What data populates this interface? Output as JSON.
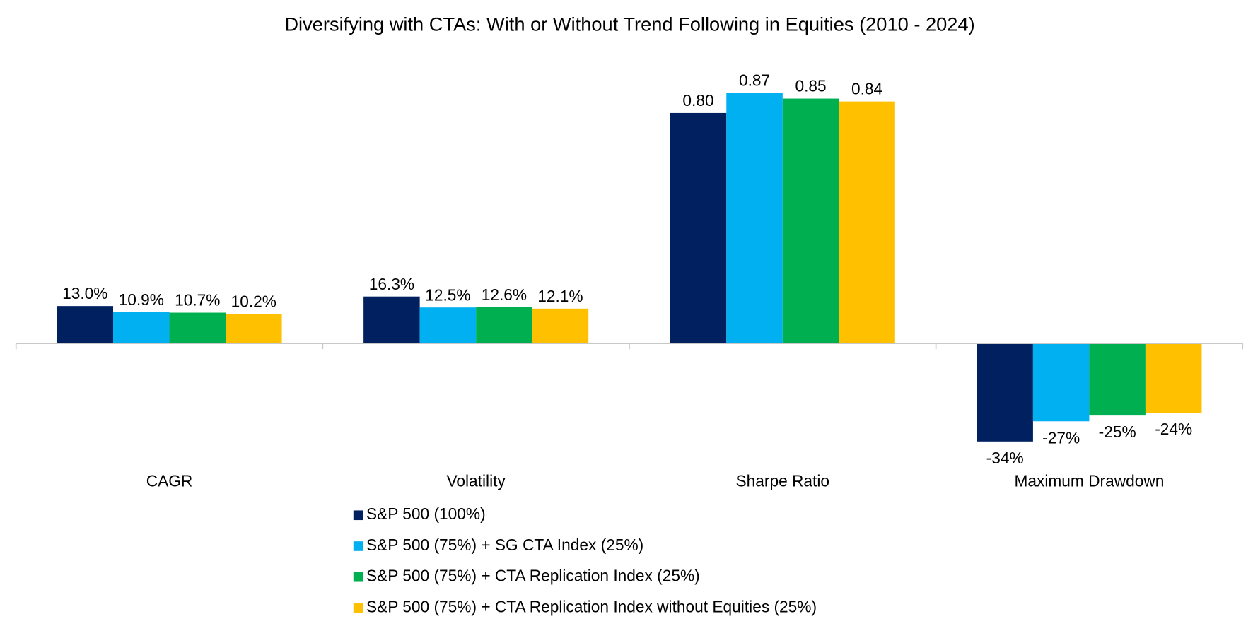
{
  "chart_data": {
    "type": "bar",
    "title": "Diversifying with CTAs: With or Without Trend Following in Equities (2010 - 2024)",
    "categories": [
      "CAGR",
      "Volatility",
      "Sharpe Ratio",
      "Maximum Drawdown"
    ],
    "series": [
      {
        "name": "S&P 500 (100%)",
        "color": "#002060",
        "values": [
          0.13,
          0.163,
          0.8,
          -0.34
        ],
        "value_labels": [
          "13.0%",
          "16.3%",
          "0.80",
          "-34%"
        ]
      },
      {
        "name": "S&P 500 (75%) + SG CTA Index (25%)",
        "color": "#00b0f0",
        "values": [
          0.109,
          0.125,
          0.87,
          -0.27
        ],
        "value_labels": [
          "10.9%",
          "12.5%",
          "0.87",
          "-27%"
        ]
      },
      {
        "name": "S&P 500 (75%) + CTA Replication Index (25%)",
        "color": "#00b050",
        "values": [
          0.107,
          0.126,
          0.85,
          -0.25
        ],
        "value_labels": [
          "10.7%",
          "12.6%",
          "0.85",
          "-25%"
        ]
      },
      {
        "name": "S&P 500 (75%) + CTA Replication Index without Equities (25%)",
        "color": "#ffc000",
        "values": [
          0.102,
          0.121,
          0.84,
          -0.24
        ],
        "value_labels": [
          "10.2%",
          "12.1%",
          "0.84",
          "-24%"
        ]
      }
    ],
    "ylim": [
      -0.4,
      1.0
    ],
    "legend": "bottom"
  }
}
